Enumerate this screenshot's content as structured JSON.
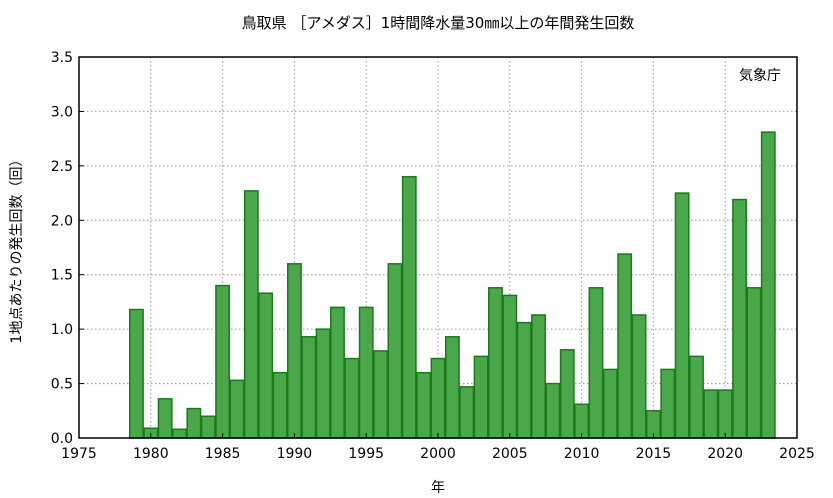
{
  "chart_data": {
    "type": "bar",
    "title": "鳥取県 ［アメダス］1時間降水量30㎜以上の年間発生回数",
    "annotation": "気象庁",
    "xlabel": "年",
    "ylabel": "1地点あたりの発生回数（回）",
    "xlim": [
      1975,
      2025
    ],
    "ylim": [
      0,
      3.5
    ],
    "x_ticks": [
      "1975",
      "1980",
      "1985",
      "1990",
      "1995",
      "2000",
      "2005",
      "2010",
      "2015",
      "2020",
      "2025"
    ],
    "y_ticks": [
      "0.0",
      "0.5",
      "1.0",
      "1.5",
      "2.0",
      "2.5",
      "3.0",
      "3.5"
    ],
    "grid": true,
    "x": [
      1979,
      1980,
      1981,
      1982,
      1983,
      1984,
      1985,
      1986,
      1987,
      1988,
      1989,
      1990,
      1991,
      1992,
      1993,
      1994,
      1995,
      1996,
      1997,
      1998,
      1999,
      2000,
      2001,
      2002,
      2003,
      2004,
      2005,
      2006,
      2007,
      2008,
      2009,
      2010,
      2011,
      2012,
      2013,
      2014,
      2015,
      2016,
      2017,
      2018,
      2019,
      2020,
      2021,
      2022,
      2023
    ],
    "values": [
      1.18,
      0.09,
      0.36,
      0.08,
      0.27,
      0.2,
      1.4,
      0.53,
      2.27,
      1.33,
      0.6,
      1.6,
      0.93,
      1.0,
      1.2,
      0.73,
      1.2,
      0.8,
      1.6,
      2.4,
      0.6,
      0.73,
      0.93,
      0.47,
      0.75,
      1.38,
      1.31,
      1.06,
      1.13,
      0.5,
      0.81,
      0.31,
      1.38,
      0.63,
      1.69,
      1.13,
      0.25,
      0.63,
      2.25,
      0.75,
      0.44,
      0.44,
      2.19,
      1.38,
      2.81
    ],
    "colors": {
      "bar_fill": "#4aa84a",
      "bar_edge": "#1c7a1c"
    }
  }
}
